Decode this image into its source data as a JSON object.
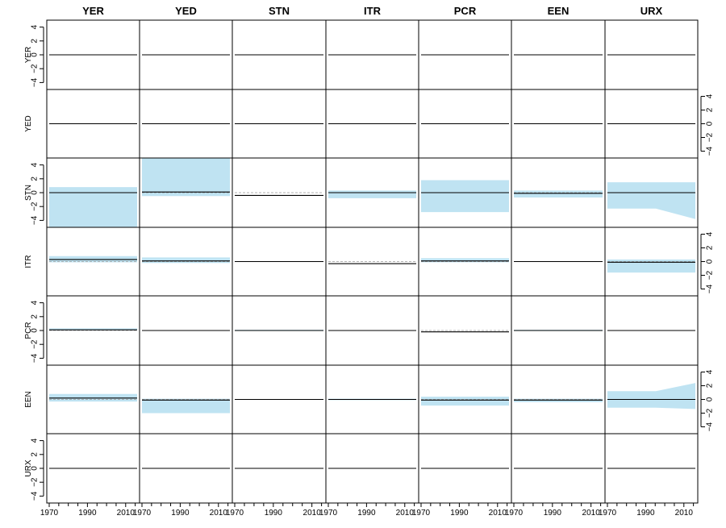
{
  "chart_data": {
    "type": "area",
    "columns": [
      "YER",
      "YED",
      "STN",
      "ITR",
      "PCR",
      "EEN",
      "URX"
    ],
    "rows": [
      "YER",
      "YED",
      "STN",
      "ITR",
      "PCR",
      "EEN",
      "URX"
    ],
    "x_ticks": [
      1970,
      1990,
      2010
    ],
    "xlim": [
      1970,
      2016
    ],
    "y_ticks": [
      4,
      2,
      0,
      -2,
      -4
    ],
    "y_tick_labels": [
      "4",
      "2",
      "0",
      "−2",
      "−4"
    ],
    "ylim": [
      -5,
      5
    ],
    "y_axis_side": [
      "left",
      "right",
      "left",
      "right",
      "left",
      "right",
      "left"
    ],
    "band_color": "#bfe3f2",
    "line_color": "#000000",
    "zero_line_color": "#999999",
    "panels": [
      {
        "row": "YER",
        "col": "YER",
        "lo": 0,
        "hi": 0,
        "mid": 0
      },
      {
        "row": "YER",
        "col": "YED",
        "lo": -0.05,
        "hi": 0.05,
        "mid": 0
      },
      {
        "row": "YER",
        "col": "STN",
        "lo": 0,
        "hi": 0,
        "mid": 0
      },
      {
        "row": "YER",
        "col": "ITR",
        "lo": 0,
        "hi": 0,
        "mid": 0
      },
      {
        "row": "YER",
        "col": "PCR",
        "lo": 0,
        "hi": 0,
        "mid": 0
      },
      {
        "row": "YER",
        "col": "EEN",
        "lo": 0,
        "hi": 0,
        "mid": 0
      },
      {
        "row": "YER",
        "col": "URX",
        "lo": 0,
        "hi": 0,
        "mid": 0
      },
      {
        "row": "YED",
        "col": "YER",
        "lo": 0,
        "hi": 0,
        "mid": 0
      },
      {
        "row": "YED",
        "col": "YED",
        "lo": 0,
        "hi": 0,
        "mid": 0
      },
      {
        "row": "YED",
        "col": "STN",
        "lo": 0,
        "hi": 0,
        "mid": 0
      },
      {
        "row": "YED",
        "col": "ITR",
        "lo": 0,
        "hi": 0,
        "mid": 0
      },
      {
        "row": "YED",
        "col": "PCR",
        "lo": 0,
        "hi": 0,
        "mid": 0
      },
      {
        "row": "YED",
        "col": "EEN",
        "lo": 0,
        "hi": 0,
        "mid": 0
      },
      {
        "row": "YED",
        "col": "URX",
        "lo": 0,
        "hi": 0,
        "mid": 0
      },
      {
        "row": "STN",
        "col": "YER",
        "lo": -5,
        "hi": 0.8,
        "mid": 0
      },
      {
        "row": "STN",
        "col": "YED",
        "lo": -0.5,
        "hi": 5,
        "mid": 0.1
      },
      {
        "row": "STN",
        "col": "STN",
        "lo": -0.4,
        "hi": -0.4,
        "mid": -0.4
      },
      {
        "row": "STN",
        "col": "ITR",
        "lo": -0.8,
        "hi": 0.3,
        "mid": 0
      },
      {
        "row": "STN",
        "col": "PCR",
        "lo": -2.8,
        "hi": 1.8,
        "mid": 0
      },
      {
        "row": "STN",
        "col": "EEN",
        "lo": -0.7,
        "hi": 0.3,
        "mid": -0.1
      },
      {
        "row": "STN",
        "col": "URX",
        "lo": -2.3,
        "hi": 1.5,
        "mid": 0,
        "lo_end": -3.8
      },
      {
        "row": "ITR",
        "col": "YER",
        "lo": -0.1,
        "hi": 0.8,
        "mid": 0.3
      },
      {
        "row": "ITR",
        "col": "YED",
        "lo": -0.2,
        "hi": 0.6,
        "mid": 0.1
      },
      {
        "row": "ITR",
        "col": "STN",
        "lo": 0,
        "hi": 0,
        "mid": 0
      },
      {
        "row": "ITR",
        "col": "ITR",
        "lo": -0.3,
        "hi": -0.3,
        "mid": -0.3
      },
      {
        "row": "ITR",
        "col": "PCR",
        "lo": -0.1,
        "hi": 0.5,
        "mid": 0.1
      },
      {
        "row": "ITR",
        "col": "EEN",
        "lo": -0.05,
        "hi": 0.05,
        "mid": 0
      },
      {
        "row": "ITR",
        "col": "URX",
        "lo": -1.6,
        "hi": 0.3,
        "mid": -0.1
      },
      {
        "row": "PCR",
        "col": "YER",
        "lo": 0,
        "hi": 0.3,
        "mid": 0.1
      },
      {
        "row": "PCR",
        "col": "YED",
        "lo": 0,
        "hi": 0,
        "mid": 0
      },
      {
        "row": "PCR",
        "col": "STN",
        "lo": 0,
        "hi": 0.1,
        "mid": 0
      },
      {
        "row": "PCR",
        "col": "ITR",
        "lo": 0,
        "hi": 0,
        "mid": 0
      },
      {
        "row": "PCR",
        "col": "PCR",
        "lo": -0.2,
        "hi": -0.2,
        "mid": -0.2
      },
      {
        "row": "PCR",
        "col": "EEN",
        "lo": 0,
        "hi": 0.1,
        "mid": 0
      },
      {
        "row": "PCR",
        "col": "URX",
        "lo": 0,
        "hi": 0,
        "mid": 0
      },
      {
        "row": "EEN",
        "col": "YER",
        "lo": -0.3,
        "hi": 0.8,
        "mid": 0.2
      },
      {
        "row": "EEN",
        "col": "YED",
        "lo": -2.0,
        "hi": 0.1,
        "mid": -0.1
      },
      {
        "row": "EEN",
        "col": "STN",
        "lo": 0,
        "hi": 0,
        "mid": 0
      },
      {
        "row": "EEN",
        "col": "ITR",
        "lo": -0.1,
        "hi": 0.1,
        "mid": 0
      },
      {
        "row": "EEN",
        "col": "PCR",
        "lo": -0.9,
        "hi": 0.4,
        "mid": -0.1
      },
      {
        "row": "EEN",
        "col": "EEN",
        "lo": -0.4,
        "hi": 0.1,
        "mid": -0.1
      },
      {
        "row": "EEN",
        "col": "URX",
        "lo": -1.2,
        "hi": 1.2,
        "mid": 0,
        "hi_end": 2.4,
        "lo_end": -1.4
      },
      {
        "row": "URX",
        "col": "YER",
        "lo": 0,
        "hi": 0,
        "mid": 0
      },
      {
        "row": "URX",
        "col": "YED",
        "lo": 0,
        "hi": 0,
        "mid": 0
      },
      {
        "row": "URX",
        "col": "STN",
        "lo": 0,
        "hi": 0,
        "mid": 0
      },
      {
        "row": "URX",
        "col": "ITR",
        "lo": 0,
        "hi": 0,
        "mid": 0
      },
      {
        "row": "URX",
        "col": "PCR",
        "lo": 0,
        "hi": 0,
        "mid": 0
      },
      {
        "row": "URX",
        "col": "EEN",
        "lo": 0,
        "hi": 0,
        "mid": 0
      },
      {
        "row": "URX",
        "col": "URX",
        "lo": 0,
        "hi": 0,
        "mid": 0
      }
    ]
  }
}
